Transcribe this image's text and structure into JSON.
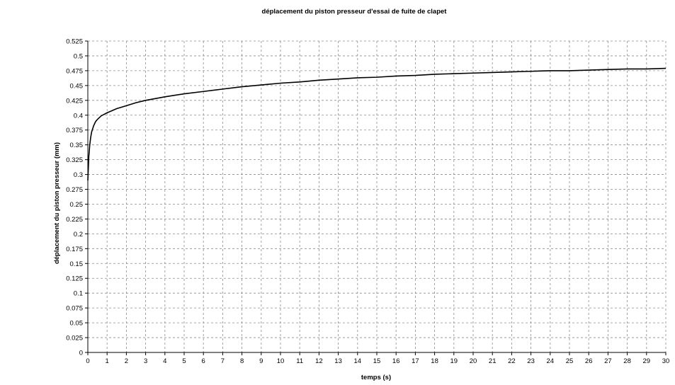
{
  "chart_data": {
    "type": "line",
    "title": "déplacement du piston presseur d'essai de fuite de clapet",
    "xlabel": "temps (s)",
    "ylabel": "déplacement du piston presseur (mm)",
    "xlim": [
      0,
      30
    ],
    "ylim": [
      0,
      0.525
    ],
    "grid": true,
    "legend": "none",
    "x_ticks": [
      "0",
      "1",
      "2",
      "3",
      "4",
      "5",
      "6",
      "7",
      "8",
      "9",
      "10",
      "11",
      "12",
      "13",
      "14",
      "15",
      "16",
      "17",
      "18",
      "19",
      "20",
      "21",
      "22",
      "23",
      "24",
      "25",
      "26",
      "27",
      "28",
      "29",
      "30"
    ],
    "y_ticks": [
      "0",
      "0.025",
      "0.05",
      "0.075",
      "0.1",
      "0.125",
      "0.15",
      "0.175",
      "0.2",
      "0.225",
      "0.25",
      "0.275",
      "0.3",
      "0.325",
      "0.35",
      "0.375",
      "0.4",
      "0.425",
      "0.45",
      "0.475",
      "0.5",
      "0.525"
    ],
    "series": [
      {
        "color": "#000000",
        "x": [
          0,
          0.05,
          0.1,
          0.15,
          0.2,
          0.3,
          0.4,
          0.5,
          0.7,
          1,
          1.5,
          2,
          2.5,
          3,
          4,
          5,
          6,
          7,
          8,
          9,
          10,
          11,
          12,
          13,
          14,
          15,
          16,
          17,
          18,
          19,
          20,
          21,
          22,
          23,
          24,
          25,
          26,
          27,
          28,
          29,
          30
        ],
        "y": [
          0.29,
          0.33,
          0.35,
          0.363,
          0.372,
          0.382,
          0.389,
          0.393,
          0.399,
          0.404,
          0.411,
          0.416,
          0.421,
          0.425,
          0.431,
          0.436,
          0.44,
          0.444,
          0.448,
          0.451,
          0.454,
          0.456,
          0.459,
          0.461,
          0.463,
          0.464,
          0.466,
          0.467,
          0.469,
          0.47,
          0.471,
          0.472,
          0.473,
          0.474,
          0.475,
          0.475,
          0.476,
          0.477,
          0.478,
          0.478,
          0.479
        ]
      }
    ]
  }
}
